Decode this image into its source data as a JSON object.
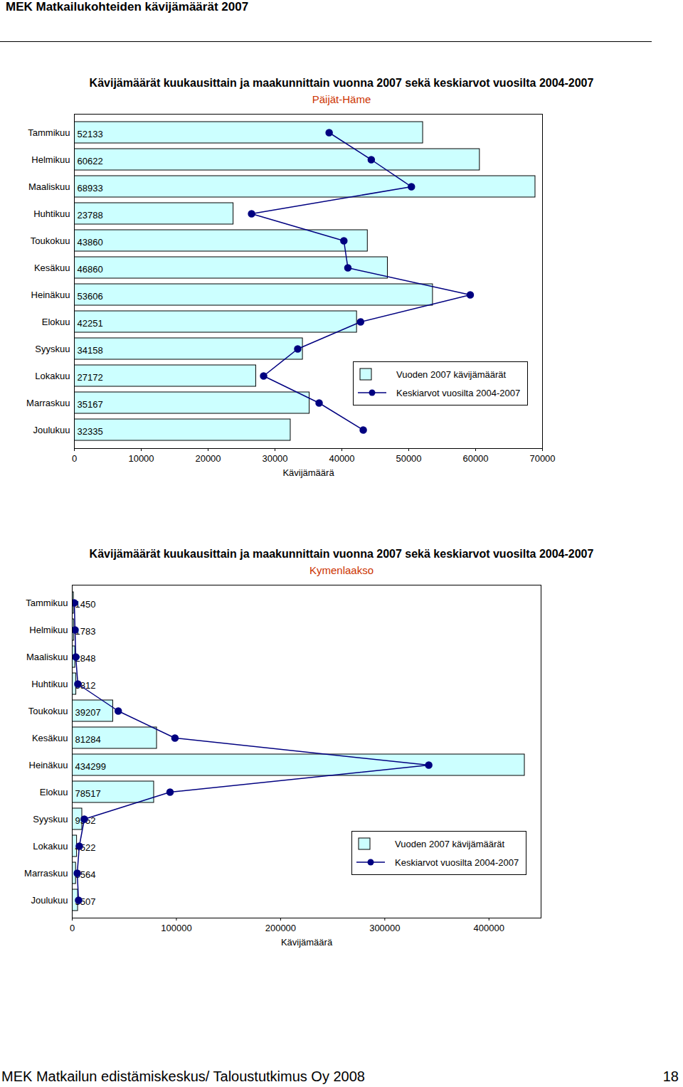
{
  "header": "MEK Matkailukohteiden kävijämäärät 2007",
  "footer": "MEK Matkailun edistämiskeskus/ Taloustutkimus Oy 2008",
  "page_number": "18",
  "chart_data": [
    {
      "type": "bar",
      "orientation": "horizontal",
      "title": "Kävijämäärät kuukausittain ja maakunnittain vuonna 2007 sekä keskiarvot vuosilta 2004-2007",
      "subtitle": "Päijät-Häme",
      "x_label": "Kävijämäärä",
      "categories": [
        "Tammikuu",
        "Helmikuu",
        "Maaliskuu",
        "Huhtikuu",
        "Toukokuu",
        "Kesäkuu",
        "Heinäkuu",
        "Elokuu",
        "Syyskuu",
        "Lokakuu",
        "Marraskuu",
        "Joulukuu"
      ],
      "series": [
        {
          "name": "Vuoden 2007 kävijämäärät",
          "type": "bar",
          "color": "#ccffff",
          "data_labels": true,
          "values": [
            52133,
            60622,
            68933,
            23788,
            43860,
            46860,
            53606,
            42251,
            34158,
            27172,
            35167,
            32335
          ]
        },
        {
          "name": "Keskiarvot vuosilta 2004-2007",
          "type": "line",
          "color": "#000080",
          "marker": "circle",
          "values": [
            38100,
            44400,
            50400,
            26500,
            40300,
            40900,
            59200,
            42800,
            33400,
            28300,
            36600,
            43200
          ]
        }
      ],
      "xlim": [
        0,
        70000
      ],
      "xticks": [
        0,
        10000,
        20000,
        30000,
        40000,
        50000,
        60000,
        70000
      ],
      "legend": "bottom right"
    },
    {
      "type": "bar",
      "orientation": "horizontal",
      "title": "Kävijämäärät kuukausittain ja maakunnittain vuonna 2007 sekä keskiarvot vuosilta 2004-2007",
      "subtitle": "Kymenlaakso",
      "x_label": "Kävijämäärä",
      "categories": [
        "Tammikuu",
        "Helmikuu",
        "Maaliskuu",
        "Huhtikuu",
        "Toukokuu",
        "Kesäkuu",
        "Heinäkuu",
        "Elokuu",
        "Syyskuu",
        "Lokakuu",
        "Marraskuu",
        "Joulukuu"
      ],
      "series": [
        {
          "name": "Vuoden 2007 kävijämäärät",
          "type": "bar",
          "color": "#ccffff",
          "data_labels": true,
          "values": [
            1450,
            1783,
            2848,
            3812,
            39207,
            81284,
            434299,
            78517,
            9552,
            4522,
            3564,
            5507
          ]
        },
        {
          "name": "Keskiarvot vuosilta 2004-2007",
          "type": "line",
          "color": "#000080",
          "marker": "circle",
          "values": [
            2000,
            2700,
            3400,
            5400,
            44200,
            98600,
            342200,
            93900,
            11600,
            6800,
            4800,
            6100
          ]
        }
      ],
      "xlim": [
        0,
        450000
      ],
      "xticks": [
        0,
        100000,
        200000,
        300000,
        400000
      ],
      "legend": "bottom right"
    }
  ]
}
